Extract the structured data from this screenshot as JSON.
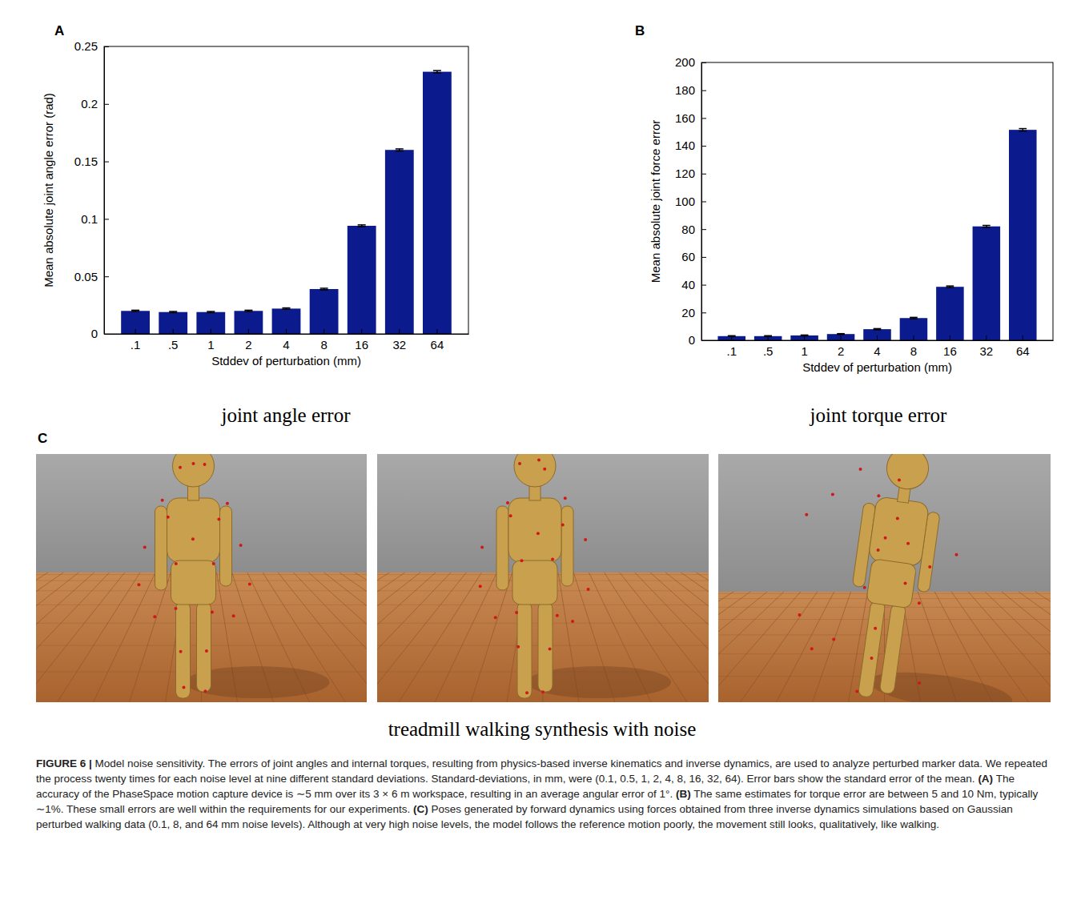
{
  "chart_data": [
    {
      "type": "bar",
      "panel": "A",
      "subtitle": "joint angle error",
      "x_label": "Stddev of perturbation (mm)",
      "y_label": "Mean absolute joint angle error (rad)",
      "categories": [
        ".1",
        ".5",
        "1",
        "2",
        "4",
        "8",
        "16",
        "32",
        "64"
      ],
      "values": [
        0.02,
        0.019,
        0.019,
        0.02,
        0.022,
        0.039,
        0.094,
        0.16,
        0.228
      ],
      "errors": [
        0.0006,
        0.0005,
        0.0005,
        0.0006,
        0.0006,
        0.0007,
        0.0008,
        0.0009,
        0.001
      ],
      "color": "#0b1a8c",
      "ylim": [
        0,
        0.25
      ],
      "yticks": [
        0,
        0.05,
        0.1,
        0.15,
        0.2,
        0.25
      ],
      "grid": false
    },
    {
      "type": "bar",
      "panel": "B",
      "subtitle": "joint torque error",
      "x_label": "Stddev of perturbation (mm)",
      "y_label": "Mean absolute joint force error",
      "categories": [
        ".1",
        ".5",
        "1",
        "2",
        "4",
        "8",
        "16",
        "32",
        "64"
      ],
      "values": [
        3,
        3,
        3.5,
        4.5,
        8,
        16,
        38.5,
        82,
        151.5
      ],
      "errors": [
        0.3,
        0.3,
        0.3,
        0.3,
        0.4,
        0.5,
        0.6,
        0.7,
        0.9
      ],
      "color": "#0b1a8c",
      "ylim": [
        0,
        200
      ],
      "yticks": [
        0,
        20,
        40,
        60,
        80,
        100,
        120,
        140,
        160,
        180,
        200
      ],
      "grid": false
    }
  ],
  "figure": {
    "panel_c": {
      "label": "C",
      "title": "treadmill walking synthesis with noise"
    },
    "caption": [
      {
        "text": "FIGURE 6 |",
        "bold": true
      },
      {
        "text": " Model noise sensitivity. The errors of joint angles and internal torques, resulting from physics-based inverse kinematics and inverse dynamics, are used to analyze perturbed marker data. We repeated the process twenty times for each noise level at nine different standard deviations. Standard-deviations, in mm, were (0.1, 0.5, 1, 2, 4, 8, 16, 32, 64). Error bars show the standard error of the mean. ",
        "bold": false
      },
      {
        "text": "(A)",
        "bold": true
      },
      {
        "text": " The accuracy of the PhaseSpace motion capture device is ∼5 mm over its 3 × 6 m workspace, resulting in an average angular error of 1°. ",
        "bold": false
      },
      {
        "text": "(B)",
        "bold": true
      },
      {
        "text": " The same estimates for torque error are between 5 and 10 Nm, typically ∼1%. These small errors are well within the requirements for our experiments. ",
        "bold": false
      },
      {
        "text": "(C)",
        "bold": true
      },
      {
        "text": " Poses generated by forward dynamics using forces obtained from three inverse dynamics simulations based on Gaussian perturbed walking data (0.1, 8, and 64 mm noise levels). Although at very high noise levels, the model follows the reference motion poorly, the movement still looks, qualitatively, like walking.",
        "bold": false
      }
    ]
  }
}
